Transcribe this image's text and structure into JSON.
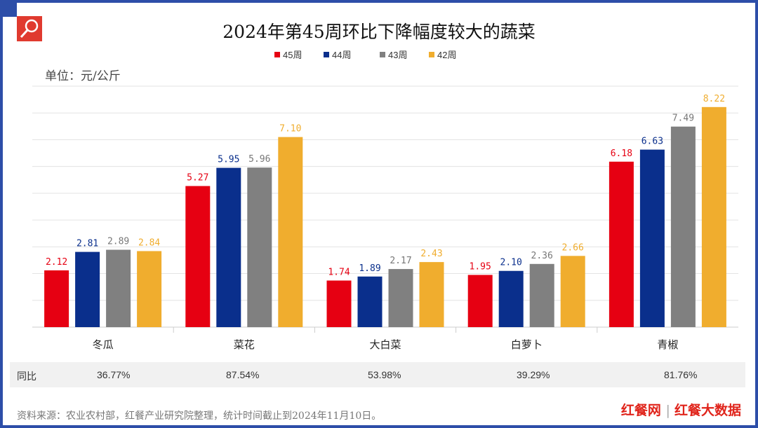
{
  "title": "2024年第45周环比下降幅度较大的蔬菜",
  "unit": "单位：元/公斤",
  "chart_data": {
    "type": "bar",
    "title": "2024年第45周环比下降幅度较大的蔬菜",
    "categories": [
      "冬瓜",
      "菜花",
      "大白菜",
      "白萝卜",
      "青椒"
    ],
    "series": [
      {
        "name": "45周",
        "color": "#e60012",
        "values": [
          2.12,
          5.27,
          1.74,
          1.95,
          6.18
        ]
      },
      {
        "name": "44周",
        "color": "#0a2f8c",
        "values": [
          2.81,
          5.95,
          1.89,
          2.1,
          6.63
        ]
      },
      {
        "name": "43周",
        "color": "#808080",
        "values": [
          2.89,
          5.96,
          2.17,
          2.36,
          7.49
        ]
      },
      {
        "name": "42周",
        "color": "#f0ad2e",
        "values": [
          2.84,
          7.1,
          2.43,
          2.66,
          8.22
        ]
      }
    ],
    "ylim": [
      0,
      9
    ],
    "grid": true,
    "legend": "top"
  },
  "yoy": {
    "label": "同比",
    "values": [
      "36.77%",
      "87.54%",
      "53.98%",
      "39.29%",
      "81.76%"
    ]
  },
  "source": "资料来源：农业农村部，红餐产业研究院整理，统计时间截止到2024年11月10日。",
  "brand": {
    "left": "红餐网",
    "right": "红餐大数据"
  }
}
